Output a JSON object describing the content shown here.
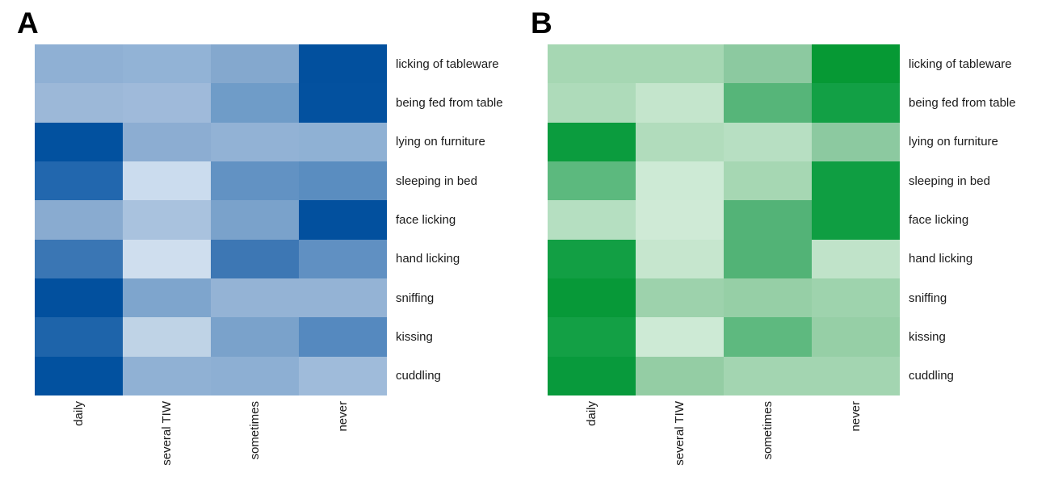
{
  "figure": {
    "panel_a_label": "A",
    "panel_b_label": "B"
  },
  "chart_data": [
    {
      "type": "heatmap",
      "panel_label": "A",
      "color_scheme": "blues",
      "palette": {
        "low": "#cfdeee",
        "high": "#02509e"
      },
      "legend": "none",
      "x_categories": [
        "daily",
        "several TIW",
        "sometimes",
        "never"
      ],
      "y_categories": [
        "licking of tableware",
        "being fed from table",
        "lying on furniture",
        "sleeping in bed",
        "face licking",
        "hand licking",
        "sniffing",
        "kissing",
        "cuddling"
      ],
      "cell_colors": [
        [
          "#8fb0d4",
          "#92b3d6",
          "#84a8ce",
          "#02509e"
        ],
        [
          "#9cb8d8",
          "#9fbada",
          "#6f9cc8",
          "#03519f"
        ],
        [
          "#02519f",
          "#8cadd2",
          "#92b2d5",
          "#8fb1d4"
        ],
        [
          "#2267ae",
          "#cbdcee",
          "#6292c3",
          "#5a8dc0"
        ],
        [
          "#89abd0",
          "#a9c2de",
          "#7aa2cb",
          "#02509e"
        ],
        [
          "#3a76b4",
          "#cfdeee",
          "#3d77b4",
          "#6090c2"
        ],
        [
          "#02509e",
          "#7ea5cd",
          "#94b3d5",
          "#94b3d5"
        ],
        [
          "#1e64aa",
          "#bfd3e6",
          "#7aa2cb",
          "#5589bf"
        ],
        [
          "#02519f",
          "#90b1d4",
          "#8dafd3",
          "#9fbbda"
        ]
      ],
      "intensity_0to1": [
        [
          0.35,
          0.33,
          0.42,
          1.0
        ],
        [
          0.27,
          0.25,
          0.55,
          1.0
        ],
        [
          1.0,
          0.37,
          0.33,
          0.35
        ],
        [
          0.82,
          0.08,
          0.62,
          0.66
        ],
        [
          0.39,
          0.22,
          0.48,
          1.0
        ],
        [
          0.73,
          0.06,
          0.73,
          0.63
        ],
        [
          1.0,
          0.45,
          0.32,
          0.32
        ],
        [
          0.84,
          0.15,
          0.48,
          0.69
        ],
        [
          1.0,
          0.34,
          0.36,
          0.25
        ]
      ]
    },
    {
      "type": "heatmap",
      "panel_label": "B",
      "color_scheme": "greens",
      "palette": {
        "low": "#cfead6",
        "high": "#069934"
      },
      "legend": "none",
      "x_categories": [
        "daily",
        "several TIW",
        "sometimes",
        "never"
      ],
      "y_categories": [
        "licking of tableware",
        "being fed from table",
        "lying on furniture",
        "sleeping in bed",
        "face licking",
        "hand licking",
        "sniffing",
        "kissing",
        "cuddling"
      ],
      "cell_colors": [
        [
          "#a6d7b3",
          "#a6d7b3",
          "#8cc9a0",
          "#069934"
        ],
        [
          "#aedbba",
          "#c4e5cc",
          "#56b579",
          "#12a045"
        ],
        [
          "#0b9c3e",
          "#b1dcbc",
          "#b7dfc2",
          "#8cc9a0"
        ],
        [
          "#5cb97e",
          "#cdead5",
          "#a6d7b3",
          "#0f9e42"
        ],
        [
          "#b5dfc1",
          "#cfead6",
          "#53b377",
          "#0f9e42"
        ],
        [
          "#129f44",
          "#c6e6ce",
          "#52b376",
          "#c0e3c9"
        ],
        [
          "#079938",
          "#9dd2ac",
          "#96cfa6",
          "#9ed3ad"
        ],
        [
          "#13a045",
          "#cdead5",
          "#5eb97f",
          "#96cfa6"
        ],
        [
          "#089a3c",
          "#94cda4",
          "#a3d5b1",
          "#a3d5b1"
        ]
      ],
      "intensity_0to1": [
        [
          0.28,
          0.28,
          0.42,
          1.0
        ],
        [
          0.24,
          0.14,
          0.62,
          0.92
        ],
        [
          0.97,
          0.22,
          0.19,
          0.42
        ],
        [
          0.58,
          0.1,
          0.28,
          0.94
        ],
        [
          0.2,
          0.08,
          0.64,
          0.94
        ],
        [
          0.92,
          0.13,
          0.64,
          0.15
        ],
        [
          0.98,
          0.36,
          0.4,
          0.35
        ],
        [
          0.92,
          0.1,
          0.56,
          0.4
        ],
        [
          0.97,
          0.38,
          0.3,
          0.3
        ]
      ]
    }
  ]
}
